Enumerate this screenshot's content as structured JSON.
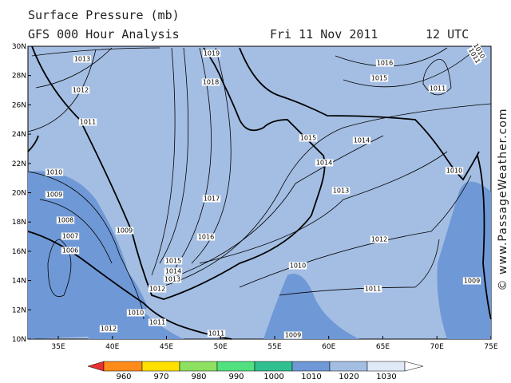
{
  "header": {
    "title": "Surface Pressure (mb)",
    "subtitle": "GFS 000 Hour Analysis",
    "date": "Fri 11 Nov 2011",
    "time": "12 UTC"
  },
  "credit": "© www.PassageWeather.com",
  "lat_labels": [
    "30N",
    "28N",
    "26N",
    "24N",
    "22N",
    "20N",
    "18N",
    "16N",
    "14N",
    "12N",
    "10N"
  ],
  "lon_labels": [
    "35E",
    "40E",
    "45E",
    "50E",
    "55E",
    "60E",
    "65E",
    "70E",
    "75E"
  ],
  "isobar_labels": [
    "1013",
    "1012",
    "1011",
    "1010",
    "1009",
    "1008",
    "1007",
    "1006",
    "1009",
    "1019",
    "1018",
    "1017",
    "1016",
    "1015",
    "1014",
    "1013",
    "1012",
    "1010",
    "1011",
    "1012",
    "1011",
    "1009",
    "1010",
    "1011",
    "1012",
    "1013",
    "1014",
    "1015",
    "1014",
    "1016",
    "1015",
    "1011",
    "1010",
    "1009",
    "1010",
    "1011"
  ],
  "colorbar": {
    "labels": [
      "960",
      "970",
      "980",
      "990",
      "1000",
      "1010",
      "1020",
      "1030"
    ]
  }
}
